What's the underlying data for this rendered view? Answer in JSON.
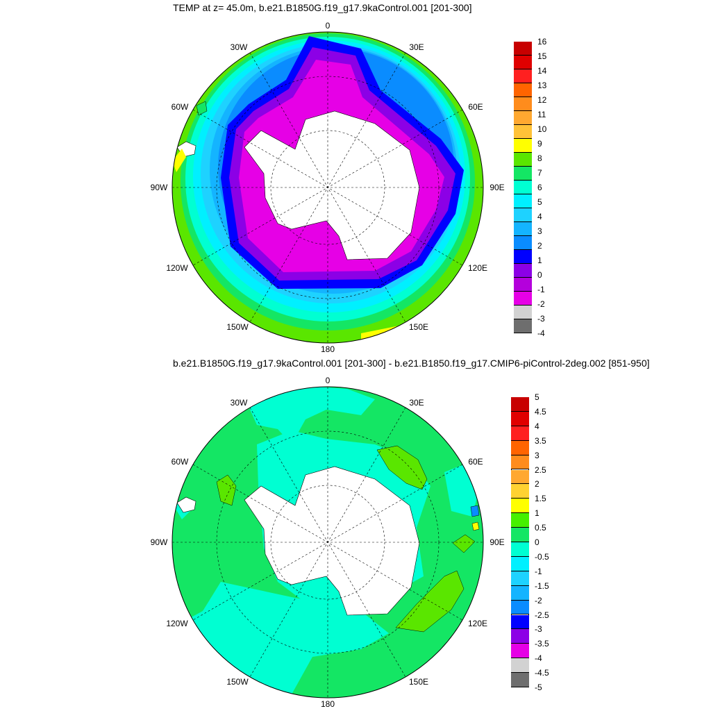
{
  "panels": [
    {
      "title": "TEMP at z=  45.0m, b.e21.B1850G.f19_g17.9kaControl.001 [201-300]",
      "lon_labels": [
        "0",
        "30E",
        "60E",
        "90E",
        "120E",
        "150E",
        "180",
        "150W",
        "120W",
        "90W",
        "60W",
        "30W"
      ],
      "colorbar": {
        "ticks": [
          "16",
          "15",
          "14",
          "13",
          "12",
          "11",
          "10",
          "9",
          "8",
          "7",
          "6",
          "5",
          "4",
          "3",
          "2",
          "1",
          "0",
          "-1",
          "-2",
          "-3",
          "-4"
        ],
        "colors": [
          "#c80000",
          "#e00000",
          "#ff2020",
          "#ff6400",
          "#ff8c1c",
          "#ffa830",
          "#ffc238",
          "#ffff00",
          "#5ae600",
          "#14e664",
          "#00ffd2",
          "#00f0ff",
          "#1ed2ff",
          "#14b4ff",
          "#0a8cff",
          "#0000ff",
          "#8c00e6",
          "#b400dc",
          "#e600e6",
          "#d2d2d2",
          "#6e6e6e"
        ]
      }
    },
    {
      "title": "b.e21.B1850G.f19_g17.9kaControl.001 [201-300] - b.e21.B1850.f19_g17.CMIP6-piControl-2deg.002 [851-950]",
      "lon_labels": [
        "0",
        "30E",
        "60E",
        "90E",
        "120E",
        "150E",
        "180",
        "150W",
        "120W",
        "90W",
        "60W",
        "30W"
      ],
      "colorbar": {
        "ticks": [
          "5",
          "4.5",
          "4",
          "3.5",
          "3",
          "2.5",
          "2",
          "1.5",
          "1",
          "0.5",
          "0",
          "-0.5",
          "-1",
          "-1.5",
          "-2",
          "-2.5",
          "-3",
          "-3.5",
          "-4",
          "-4.5",
          "-5"
        ],
        "colors": [
          "#c80000",
          "#e00000",
          "#ff2020",
          "#ff6400",
          "#ff8c1c",
          "#ffa830",
          "#ffd232",
          "#ffff00",
          "#46f000",
          "#14e664",
          "#00ffd2",
          "#00f0ff",
          "#1ed2ff",
          "#14b4ff",
          "#0a8cff",
          "#0000ff",
          "#8c00e6",
          "#e600e6",
          "#d2d2d2",
          "#6e6e6e"
        ]
      }
    }
  ]
}
